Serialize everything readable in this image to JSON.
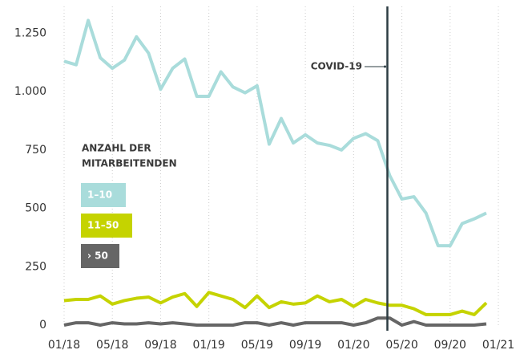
{
  "chart_data": {
    "type": "line",
    "categories": [
      "01/18",
      null,
      null,
      null,
      "05/18",
      null,
      null,
      null,
      "09/18",
      null,
      null,
      null,
      "01/19",
      null,
      null,
      null,
      "05/19",
      null,
      null,
      null,
      "09/19",
      null,
      null,
      null,
      "01/20",
      null,
      null,
      null,
      "05/20",
      null,
      null,
      null,
      "09/20",
      null,
      null,
      null,
      "01/21"
    ],
    "series": [
      {
        "name": "1–10",
        "color": "#a9dcdb",
        "values": [
          1130,
          1115,
          1305,
          1145,
          1100,
          1135,
          1235,
          1165,
          1010,
          1100,
          1140,
          980,
          980,
          1085,
          1020,
          995,
          1025,
          775,
          885,
          780,
          815,
          780,
          770,
          750,
          800,
          820,
          790,
          640,
          540,
          550,
          480,
          340,
          340,
          435,
          455,
          480,
          null
        ]
      },
      {
        "name": "11–50",
        "color": "#c5d300",
        "values": [
          105,
          110,
          110,
          125,
          90,
          105,
          115,
          120,
          95,
          120,
          135,
          80,
          140,
          125,
          110,
          75,
          125,
          75,
          100,
          90,
          95,
          125,
          100,
          110,
          80,
          110,
          95,
          85,
          85,
          70,
          45,
          45,
          45,
          60,
          45,
          95,
          null
        ]
      },
      {
        "name": "› 50",
        "color": "#666666",
        "values": [
          0,
          10,
          10,
          0,
          10,
          5,
          5,
          10,
          5,
          10,
          5,
          0,
          0,
          0,
          0,
          10,
          10,
          0,
          10,
          0,
          10,
          10,
          10,
          10,
          0,
          10,
          30,
          30,
          0,
          15,
          0,
          0,
          0,
          0,
          0,
          5,
          null
        ]
      }
    ],
    "ylim": [
      0,
      1365
    ],
    "yticks": [
      0,
      250,
      500,
      750,
      {
        "value": 1000,
        "label": "1.000"
      },
      {
        "value": 1250,
        "label": "1.250"
      }
    ],
    "grid": true,
    "legend_title": [
      "ANZAHL DER",
      "MITARBEITENDEN"
    ],
    "annotation": {
      "text": "COVID-19",
      "x": 26.8
    }
  }
}
